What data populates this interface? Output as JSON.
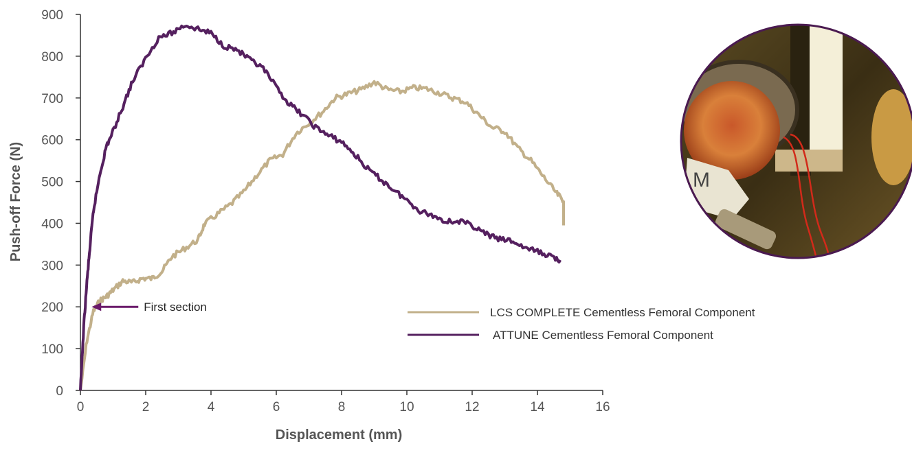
{
  "chart_data": {
    "type": "line",
    "title": "",
    "xlabel": "Displacement (mm)",
    "ylabel": "Push-off Force (N)",
    "xlim": [
      0,
      16
    ],
    "ylim": [
      0,
      900
    ],
    "x_ticks": [
      "0",
      "2",
      "4",
      "6",
      "8",
      "10",
      "12",
      "14",
      "16"
    ],
    "y_ticks": [
      "0",
      "100",
      "200",
      "300",
      "400",
      "500",
      "600",
      "700",
      "800",
      "900"
    ],
    "grid": false,
    "legend_position": "center-right",
    "series": [
      {
        "name": "LCS COMPLETE Cementless Femoral Component",
        "color": "#c2b08a",
        "points": [
          [
            0,
            0
          ],
          [
            0.2,
            120
          ],
          [
            0.4,
            190
          ],
          [
            0.6,
            215
          ],
          [
            0.8,
            225
          ],
          [
            1.0,
            240
          ],
          [
            1.3,
            262
          ],
          [
            1.6,
            258
          ],
          [
            1.9,
            268
          ],
          [
            2.2,
            268
          ],
          [
            2.5,
            285
          ],
          [
            2.8,
            320
          ],
          [
            3.2,
            340
          ],
          [
            3.6,
            360
          ],
          [
            3.8,
            398
          ],
          [
            4.2,
            422
          ],
          [
            4.6,
            445
          ],
          [
            5.0,
            475
          ],
          [
            5.4,
            515
          ],
          [
            5.8,
            550
          ],
          [
            6.2,
            565
          ],
          [
            6.6,
            615
          ],
          [
            7.0,
            640
          ],
          [
            7.4,
            665
          ],
          [
            7.8,
            700
          ],
          [
            8.2,
            710
          ],
          [
            8.6,
            720
          ],
          [
            9.0,
            738
          ],
          [
            9.4,
            720
          ],
          [
            9.8,
            715
          ],
          [
            10.2,
            724
          ],
          [
            10.6,
            722
          ],
          [
            11.0,
            712
          ],
          [
            11.4,
            700
          ],
          [
            11.8,
            690
          ],
          [
            12.2,
            660
          ],
          [
            12.6,
            630
          ],
          [
            13.0,
            620
          ],
          [
            13.4,
            580
          ],
          [
            13.8,
            550
          ],
          [
            14.2,
            510
          ],
          [
            14.6,
            470
          ],
          [
            14.8,
            455
          ],
          [
            14.8,
            395
          ]
        ]
      },
      {
        "name": "ATTUNE Cementless Femoral Component",
        "color": "#55205f",
        "points": [
          [
            0,
            0
          ],
          [
            0.1,
            150
          ],
          [
            0.2,
            260
          ],
          [
            0.3,
            350
          ],
          [
            0.4,
            430
          ],
          [
            0.6,
            520
          ],
          [
            0.8,
            585
          ],
          [
            1.0,
            620
          ],
          [
            1.3,
            680
          ],
          [
            1.6,
            740
          ],
          [
            2.0,
            795
          ],
          [
            2.4,
            845
          ],
          [
            2.8,
            855
          ],
          [
            3.2,
            875
          ],
          [
            3.6,
            865
          ],
          [
            4.0,
            855
          ],
          [
            4.4,
            825
          ],
          [
            4.8,
            815
          ],
          [
            5.2,
            790
          ],
          [
            5.6,
            770
          ],
          [
            6.0,
            725
          ],
          [
            6.4,
            685
          ],
          [
            6.8,
            660
          ],
          [
            7.2,
            630
          ],
          [
            7.6,
            610
          ],
          [
            8.0,
            595
          ],
          [
            8.4,
            565
          ],
          [
            8.8,
            530
          ],
          [
            9.2,
            505
          ],
          [
            9.6,
            480
          ],
          [
            10.0,
            455
          ],
          [
            10.4,
            430
          ],
          [
            10.8,
            418
          ],
          [
            11.2,
            405
          ],
          [
            11.6,
            405
          ],
          [
            12.0,
            395
          ],
          [
            12.4,
            375
          ],
          [
            12.8,
            362
          ],
          [
            13.2,
            358
          ],
          [
            13.6,
            342
          ],
          [
            14.0,
            332
          ],
          [
            14.4,
            322
          ],
          [
            14.7,
            312
          ]
        ]
      }
    ],
    "annotations": [
      {
        "text": "First section",
        "x": 0.7,
        "y": 200
      }
    ]
  },
  "photo": {
    "description_icon": "knee-implant-test-photo"
  }
}
